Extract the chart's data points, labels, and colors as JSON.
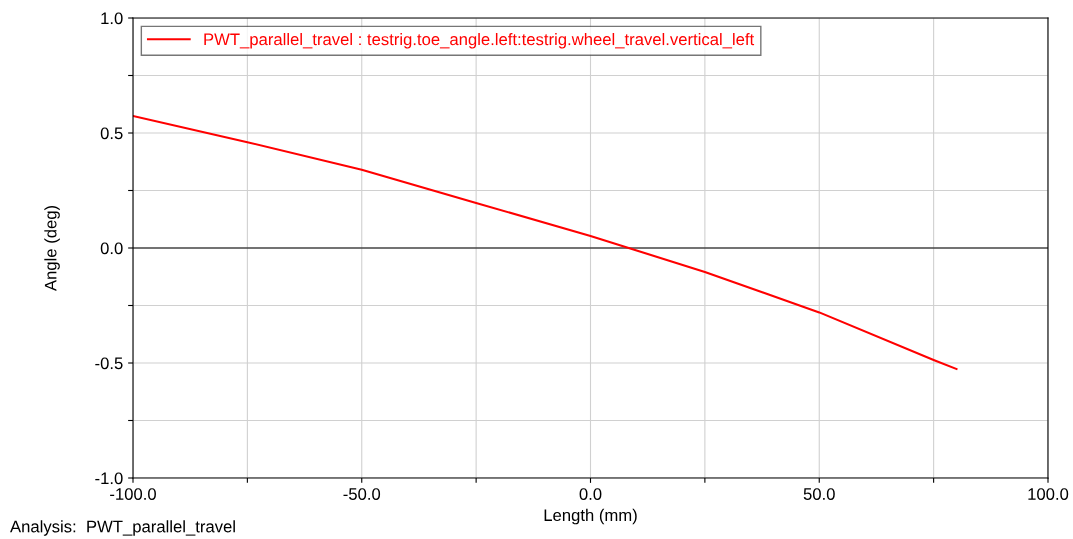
{
  "chart_data": {
    "type": "line",
    "xlabel": "Length (mm)",
    "ylabel": "Angle (deg)",
    "annotations": [
      "Analysis:  PWT_parallel_travel"
    ],
    "xlim": [
      -100,
      100
    ],
    "ylim": [
      -1,
      1
    ],
    "xticks": [
      {
        "value": -100,
        "label": "-100.0"
      },
      {
        "value": -75,
        "label": null
      },
      {
        "value": -50,
        "label": "-50.0"
      },
      {
        "value": -25,
        "label": null
      },
      {
        "value": 0,
        "label": "0.0"
      },
      {
        "value": 25,
        "label": null
      },
      {
        "value": 50,
        "label": "50.0"
      },
      {
        "value": 75,
        "label": null
      },
      {
        "value": 100,
        "label": "100.0"
      }
    ],
    "yticks": [
      {
        "value": -1,
        "label": "-1.0"
      },
      {
        "value": -0.75,
        "label": null
      },
      {
        "value": -0.5,
        "label": "-0.5"
      },
      {
        "value": -0.25,
        "label": null
      },
      {
        "value": 0,
        "label": "0.0"
      },
      {
        "value": 0.25,
        "label": null
      },
      {
        "value": 0.5,
        "label": "0.5"
      },
      {
        "value": 0.75,
        "label": null
      },
      {
        "value": 1,
        "label": "1.0"
      }
    ],
    "grid": true,
    "legend": "top left",
    "ref_lines": [
      {
        "axis": "y",
        "value": 0,
        "color": "#000000"
      }
    ],
    "series": [
      {
        "name": "PWT_parallel_travel : testrig.toe_angle.left:testrig.wheel_travel.vertical_left",
        "color": "#ff0000",
        "x": [
          -100,
          -75,
          -50,
          -25,
          0,
          25,
          50,
          75,
          80
        ],
        "values": [
          0.574,
          0.46,
          0.34,
          0.196,
          0.052,
          -0.104,
          -0.28,
          -0.487,
          -0.526
        ]
      }
    ]
  }
}
